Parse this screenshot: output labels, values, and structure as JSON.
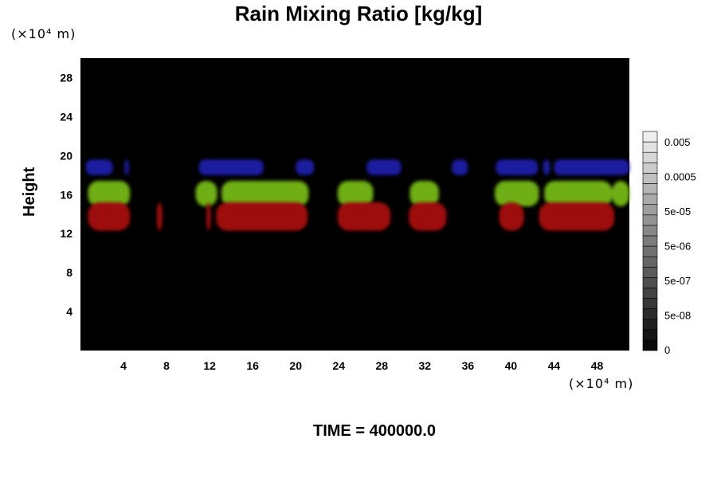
{
  "title": "Rain Mixing Ratio [kg/kg]",
  "time_label": "TIME = 400000.0",
  "chart_data": {
    "type": "heatmap",
    "title": "Rain Mixing Ratio [kg/kg]",
    "xlabel": "",
    "ylabel": "Height",
    "x_unit": "(×10⁴ m)",
    "y_unit": "(×10⁴ m)",
    "xlim": [
      0,
      51
    ],
    "ylim": [
      0,
      30
    ],
    "x_ticks": [
      4,
      8,
      12,
      16,
      20,
      24,
      28,
      32,
      36,
      40,
      44,
      48
    ],
    "y_ticks": [
      4,
      8,
      12,
      16,
      20,
      24,
      28
    ],
    "background_color": "#000000",
    "colorbar": {
      "labels": [
        "0.005",
        "0.0005",
        "5e-05",
        "5e-06",
        "5e-07",
        "5e-08",
        "0"
      ],
      "levels": 21
    },
    "layers": [
      {
        "color": "#1a1aa0",
        "height_range": [
          18.0,
          19.6
        ],
        "segments": [
          [
            0.5,
            3.0
          ],
          [
            4.1,
            4.5
          ],
          [
            11.0,
            17.0
          ],
          [
            20.0,
            21.7
          ],
          [
            26.6,
            29.8
          ],
          [
            34.5,
            36.0
          ],
          [
            38.6,
            42.5
          ],
          [
            43.0,
            43.6
          ],
          [
            44.0,
            51.0
          ]
        ]
      },
      {
        "color": "#6fae18",
        "height_range": [
          14.8,
          17.4
        ],
        "segments": [
          [
            0.7,
            4.6
          ],
          [
            10.7,
            12.7
          ],
          [
            13.1,
            21.2
          ],
          [
            23.9,
            27.2
          ],
          [
            30.6,
            33.3
          ],
          [
            38.5,
            42.6
          ],
          [
            43.1,
            49.4
          ],
          [
            49.4,
            51.0
          ]
        ]
      },
      {
        "color": "#9e0c0c",
        "height_range": [
          12.3,
          15.2
        ],
        "segments": [
          [
            0.7,
            4.6
          ],
          [
            7.1,
            7.6
          ],
          [
            11.7,
            12.1
          ],
          [
            12.6,
            21.1
          ],
          [
            23.9,
            26.9
          ],
          [
            25.2,
            28.8
          ],
          [
            30.5,
            34.0
          ],
          [
            38.9,
            41.2
          ],
          [
            42.6,
            49.6
          ]
        ]
      }
    ]
  }
}
